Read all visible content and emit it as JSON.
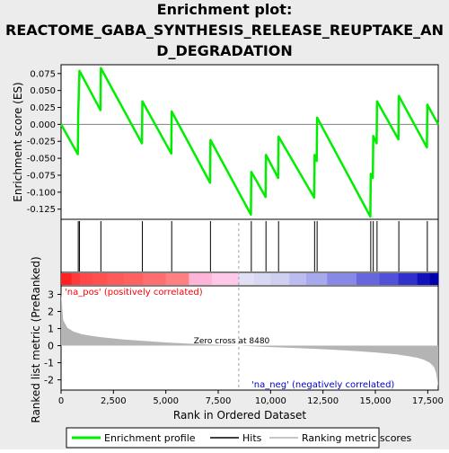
{
  "chart_data": {
    "type": "line",
    "title_lines": [
      "Enrichment plot:",
      "REACTOME_GABA_SYNTHESIS_RELEASE_REUPTAKE_AN",
      "D_DEGRADATION"
    ],
    "xlabel": "Rank in Ordered Dataset",
    "top_ylabel": "Enrichment score (ES)",
    "bottom_ylabel": "Ranked list metric (PreRanked)",
    "xlim": [
      0,
      18000
    ],
    "x_ticks": [
      0,
      2500,
      5000,
      7500,
      10000,
      12500,
      15000,
      17500
    ],
    "x_tick_labels": [
      "0",
      "2,500",
      "5,000",
      "7,500",
      "10,000",
      "12,500",
      "15,000",
      "17,500"
    ],
    "es_ylim": [
      -0.14,
      0.088
    ],
    "es_ticks": [
      0.075,
      0.05,
      0.025,
      0.0,
      -0.025,
      -0.05,
      -0.075,
      -0.1,
      -0.125
    ],
    "es_tick_labels": [
      "0.075",
      "0.050",
      "0.025",
      "0.000",
      "-0.025",
      "-0.050",
      "-0.075",
      "-0.100",
      "-0.125"
    ],
    "metric_ylim": [
      -2.6,
      3.5
    ],
    "metric_ticks": [
      3,
      2,
      1,
      0,
      -1,
      -2
    ],
    "metric_tick_labels": [
      "3",
      "2",
      "1",
      "0",
      "-1",
      "-2"
    ],
    "hits": [
      820,
      880,
      1900,
      3880,
      5280,
      7130,
      9080,
      9780,
      10380,
      12100,
      12220,
      14780,
      14900,
      15080,
      16120,
      17480
    ],
    "enrichment_profile": {
      "x": [
        0,
        800,
        820,
        880,
        1880,
        1900,
        3860,
        3880,
        5260,
        5280,
        7110,
        7130,
        9060,
        9080,
        9760,
        9780,
        10360,
        10380,
        12080,
        12100,
        12200,
        12220,
        14760,
        14780,
        14880,
        14900,
        15060,
        15080,
        16100,
        16120,
        17460,
        17480,
        18000
      ],
      "y": [
        0.0,
        -0.044,
        0.016,
        0.079,
        0.021,
        0.083,
        -0.028,
        0.034,
        -0.043,
        0.019,
        -0.086,
        -0.023,
        -0.133,
        -0.07,
        -0.107,
        -0.045,
        -0.079,
        -0.018,
        -0.108,
        -0.045,
        -0.054,
        0.01,
        -0.136,
        -0.073,
        -0.079,
        -0.017,
        -0.028,
        0.034,
        -0.022,
        0.042,
        -0.034,
        0.029,
        0.0
      ]
    },
    "metric_profile": {
      "x": [
        0,
        100,
        300,
        600,
        1000,
        1500,
        2000,
        3000,
        4000,
        5000,
        6000,
        7000,
        8000,
        8480,
        9000,
        10000,
        11000,
        12000,
        13000,
        14000,
        15000,
        16000,
        16500,
        17000,
        17300,
        17600,
        17800,
        17900,
        18000
      ],
      "y": [
        3.1,
        1.5,
        1.05,
        0.82,
        0.67,
        0.56,
        0.48,
        0.36,
        0.27,
        0.19,
        0.12,
        0.07,
        0.02,
        0.0,
        -0.03,
        -0.08,
        -0.13,
        -0.18,
        -0.24,
        -0.31,
        -0.4,
        -0.51,
        -0.6,
        -0.71,
        -0.82,
        -1.0,
        -1.25,
        -1.6,
        -2.4
      ]
    },
    "zero_cross_label": "Zero cross at 8480",
    "zero_cross_x": 8480,
    "pos_label": "'na_pos' (positively correlated)",
    "neg_label": "'na_neg' (negatively correlated)",
    "legend": [
      "Enrichment profile",
      "Hits",
      "Ranking metric scores"
    ],
    "colors": {
      "profile": "#00ee00",
      "hit": "#000000",
      "metric_fill": "#b4b4b4",
      "zero_cross": "#a0a0a0",
      "pos_text": "#ff0000",
      "neg_text": "#0000cc",
      "zero_line": "#808080",
      "background": "#ececec"
    },
    "heatmap": {
      "boundaries": [
        0,
        500,
        900,
        1500,
        2200,
        3000,
        3900,
        5000,
        6100,
        7200,
        8480,
        9200,
        10000,
        10900,
        11700,
        12700,
        14100,
        15200,
        16100,
        17000,
        17600,
        18000
      ],
      "colors": [
        "#ff2222",
        "#ff3a3a",
        "#ff4848",
        "#ff5050",
        "#ff5a5a",
        "#ff6060",
        "#ff6e6e",
        "#ff8080",
        "#ffb4d8",
        "#ffc8e8",
        "#e0e0f4",
        "#d8d8f4",
        "#cfcff2",
        "#bcbcf0",
        "#a8a8ec",
        "#8888e6",
        "#6666dd",
        "#5050d8",
        "#3030cc",
        "#1212bb",
        "#0000aa"
      ]
    }
  }
}
